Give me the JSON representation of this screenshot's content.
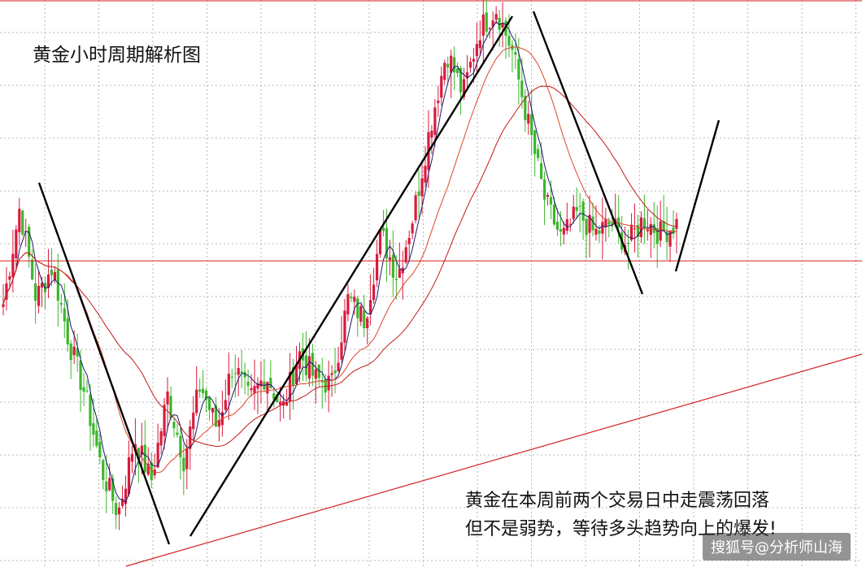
{
  "chart_data": {
    "type": "candlestick",
    "title": "黄金小时周期解析图",
    "annotation_lines": [
      "黄金在本周前两个交易日中走震荡回落",
      "但不是弱势，等待多头趋势向上的爆发!"
    ],
    "grid": true,
    "horizontal_level": 0.53,
    "segments": [
      {
        "name": "",
        "points": [
          0.45,
          0.63,
          0.46,
          0.52,
          0.38,
          0.28,
          0.14,
          0.06
        ]
      },
      {
        "name": "",
        "points": [
          0.06,
          0.2,
          0.12,
          0.28,
          0.16,
          0.3,
          0.22,
          0.34,
          0.27,
          0.32,
          0.25,
          0.36,
          0.31,
          0.3,
          0.46,
          0.42,
          0.58,
          0.5,
          0.62,
          0.78,
          0.92,
          0.84,
          0.96,
          1.0
        ]
      },
      {
        "name": "",
        "points": [
          1.0,
          0.92,
          0.78,
          0.64,
          0.57,
          0.62,
          0.58,
          0.6,
          0.56,
          0.61,
          0.58,
          0.6
        ]
      }
    ],
    "colors": {
      "up": "#d81b3d",
      "down": "#3cb62c",
      "ma_fast": "#1a1a6e",
      "ma_mid": "#e0442a",
      "ma_slow": "#c41a1a",
      "trend": "#000000",
      "support": "#d42020",
      "grid": "#b9b9b9"
    }
  },
  "watermark": "搜狐号@分析师山海"
}
